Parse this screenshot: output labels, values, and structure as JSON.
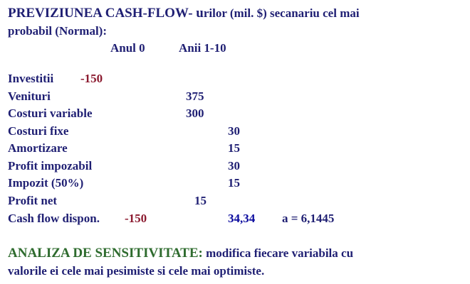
{
  "title": {
    "line1_part1": "PREVIZIUNEA CASH-FLOW- u",
    "line1_part2": "rilor (mil. $) secanariu cel mai",
    "line2": "probabil (Normal):"
  },
  "columns": {
    "year0": "Anul 0",
    "years": "Anii 1-10"
  },
  "rows": [
    {
      "label": "Investitii",
      "year0": "-150"
    },
    {
      "label": "Venituri",
      "mid": "375"
    },
    {
      "label": "Costuri variable",
      "mid": "300"
    },
    {
      "label": "Costuri fixe",
      "years": "30"
    },
    {
      "label": "Amortizare",
      "years": "15"
    },
    {
      "label": "Profit  impozabil",
      "years": "30"
    },
    {
      "label": "Impozit (50%)",
      "years": "15"
    },
    {
      "label": "Profit net",
      "mid": "15"
    },
    {
      "label": "Cash flow dispon.",
      "year0": "-150",
      "years": "34,34",
      "note": "a = 6,1445"
    }
  ],
  "sensitivity": {
    "heading": "ANALIZA DE SENSITIVITATE:",
    "text_line1": " modifica fiecare variabila cu",
    "text_line2": "valorile ei cele mai pesimiste si cele mai optimiste."
  },
  "colors": {
    "text": "#1f1f73",
    "negative": "#8b1a2f",
    "highlight": "#0a0a9e"
  }
}
